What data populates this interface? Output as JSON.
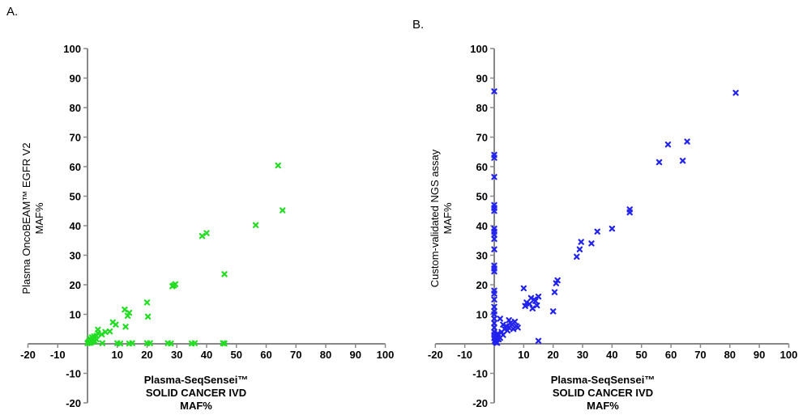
{
  "panels": {
    "a": {
      "letter": "A."
    },
    "b": {
      "letter": "B."
    }
  },
  "colors": {
    "panel_a": "#22dd22",
    "panel_b": "#2222ee",
    "axis": "#888888"
  },
  "chart_data": [
    {
      "type": "scatter",
      "xlabel_lines": [
        "Plasma-SeqSensei™",
        "SOLID CANCER IVD",
        "MAF%"
      ],
      "ylabel_lines": [
        "Plasma OncoBEAM™ EGFR V2",
        "MAF%"
      ],
      "xlim": [
        -20,
        100
      ],
      "ylim": [
        -20,
        100
      ],
      "ticks": [
        -20,
        -10,
        10,
        20,
        30,
        40,
        50,
        60,
        70,
        80,
        90,
        100
      ],
      "grid": false,
      "points": [
        [
          0,
          0.2
        ],
        [
          0.3,
          0.5
        ],
        [
          0.5,
          0.8
        ],
        [
          0.7,
          0.3
        ],
        [
          1,
          0.4
        ],
        [
          1.2,
          1
        ],
        [
          1.5,
          0.6
        ],
        [
          2,
          1.2
        ],
        [
          2.5,
          0.8
        ],
        [
          3,
          1.5
        ],
        [
          0.8,
          1.8
        ],
        [
          1.5,
          2.2
        ],
        [
          2.2,
          2.5
        ],
        [
          3,
          2.7
        ],
        [
          3.5,
          3.6
        ],
        [
          4.8,
          3.2
        ],
        [
          6,
          4
        ],
        [
          7.5,
          4.2
        ],
        [
          3.5,
          4.8
        ],
        [
          8.5,
          7.3
        ],
        [
          9.5,
          6.5
        ],
        [
          12.5,
          11.6
        ],
        [
          13.5,
          9.5
        ],
        [
          14,
          10.5
        ],
        [
          12.8,
          5.8
        ],
        [
          20,
          14
        ],
        [
          20.3,
          9.2
        ],
        [
          29,
          19.8
        ],
        [
          29.5,
          20.2
        ],
        [
          28.5,
          19.5
        ],
        [
          38.5,
          36.5
        ],
        [
          40,
          37.5
        ],
        [
          46,
          23.6
        ],
        [
          56.5,
          40.2
        ],
        [
          64,
          60.4
        ],
        [
          65.5,
          45.2
        ],
        [
          5,
          0.2
        ],
        [
          10,
          0.2
        ],
        [
          11,
          0.1
        ],
        [
          14,
          0.1
        ],
        [
          15,
          0.2
        ],
        [
          20,
          0.2
        ],
        [
          21,
          0.2
        ],
        [
          27,
          0.2
        ],
        [
          28,
          0.1
        ],
        [
          35,
          0.1
        ],
        [
          36,
          0.2
        ],
        [
          45.5,
          0.2
        ],
        [
          46,
          0.1
        ]
      ]
    },
    {
      "type": "scatter",
      "xlabel_lines": [
        "Plasma-SeqSensei™",
        "SOLID CANCER IVD",
        "MAF%"
      ],
      "ylabel_lines": [
        "Custom-validated NGS assay",
        "MAF%"
      ],
      "xlim": [
        -20,
        100
      ],
      "ylim": [
        -20,
        100
      ],
      "ticks": [
        -20,
        -10,
        10,
        20,
        30,
        40,
        50,
        60,
        70,
        80,
        90,
        100
      ],
      "grid": false,
      "points": [
        [
          0,
          85.5
        ],
        [
          0,
          64
        ],
        [
          0,
          63
        ],
        [
          0,
          56.5
        ],
        [
          0,
          47
        ],
        [
          0,
          46
        ],
        [
          0,
          45
        ],
        [
          0,
          39
        ],
        [
          0,
          38
        ],
        [
          0,
          37
        ],
        [
          0,
          35.5
        ],
        [
          0,
          32
        ],
        [
          0,
          26.5
        ],
        [
          0,
          25.5
        ],
        [
          0,
          24.5
        ],
        [
          0,
          18
        ],
        [
          0,
          17
        ],
        [
          0,
          15
        ],
        [
          0,
          12.5
        ],
        [
          0,
          11
        ],
        [
          0,
          10
        ],
        [
          0,
          8.5
        ],
        [
          0,
          7
        ],
        [
          0,
          5.5
        ],
        [
          0,
          4
        ],
        [
          0,
          3
        ],
        [
          0,
          2
        ],
        [
          0.2,
          1
        ],
        [
          0.5,
          0.5
        ],
        [
          1,
          0.3
        ],
        [
          0.3,
          1.8
        ],
        [
          0.8,
          2.5
        ],
        [
          1.2,
          3.5
        ],
        [
          1.5,
          1.5
        ],
        [
          2,
          2
        ],
        [
          2.5,
          4
        ],
        [
          3,
          3
        ],
        [
          3.5,
          5
        ],
        [
          4,
          6
        ],
        [
          4.5,
          4.5
        ],
        [
          5,
          5.5
        ],
        [
          5.5,
          7
        ],
        [
          6,
          6.5
        ],
        [
          6.5,
          5
        ],
        [
          7,
          7.5
        ],
        [
          7.5,
          6
        ],
        [
          8,
          5.5
        ],
        [
          2,
          8.5
        ],
        [
          3,
          6.5
        ],
        [
          5,
          8
        ],
        [
          10,
          18.8
        ],
        [
          10.5,
          12.8
        ],
        [
          11,
          14
        ],
        [
          12,
          13.5
        ],
        [
          12.5,
          15.5
        ],
        [
          13,
          12
        ],
        [
          13.5,
          15
        ],
        [
          14,
          14.5
        ],
        [
          14.5,
          13
        ],
        [
          15,
          16
        ],
        [
          15,
          1
        ],
        [
          20,
          11
        ],
        [
          20.5,
          17.5
        ],
        [
          21,
          20.5
        ],
        [
          21.5,
          21.5
        ],
        [
          28,
          29.5
        ],
        [
          29,
          32
        ],
        [
          29.5,
          34.5
        ],
        [
          33,
          34
        ],
        [
          35,
          38
        ],
        [
          40,
          39
        ],
        [
          46,
          44.5
        ],
        [
          46,
          45.5
        ],
        [
          56,
          61.5
        ],
        [
          59,
          67.5
        ],
        [
          64,
          62
        ],
        [
          65.5,
          68.5
        ],
        [
          82,
          85
        ]
      ]
    }
  ]
}
